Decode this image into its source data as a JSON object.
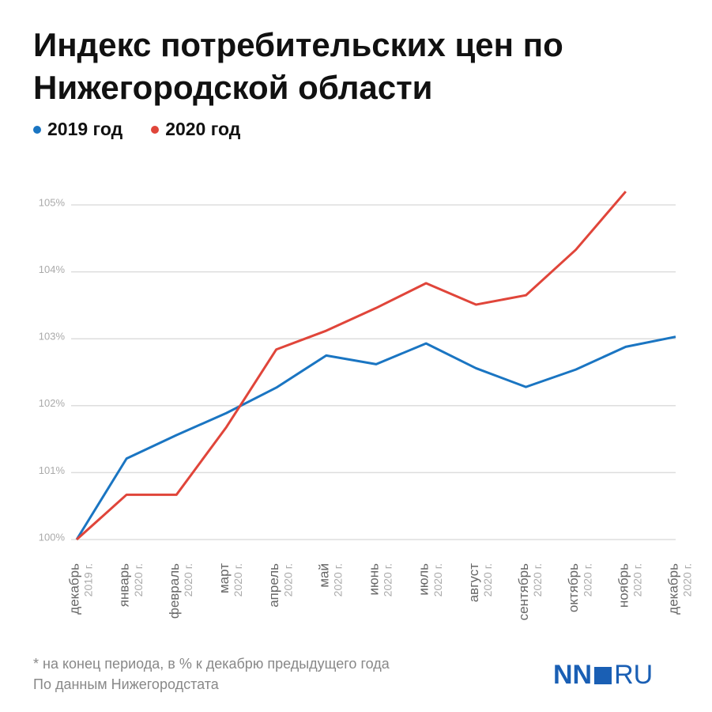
{
  "chart_data": {
    "type": "line",
    "title": "Индекс потребительских цен по Нижегородской области",
    "categories": [
      "декабрь",
      "январь",
      "февраль",
      "март",
      "апрель",
      "май",
      "июнь",
      "июль",
      "август",
      "сентябрь",
      "октябрь",
      "ноябрь",
      "декабрь"
    ],
    "category_years": [
      "2019 г.",
      "2020 г.",
      "2020 г.",
      "2020 г.",
      "2020 г.",
      "2020 г.",
      "2020 г.",
      "2020 г.",
      "2020 г.",
      "2020 г.",
      "2020 г.",
      "2020 г.",
      "2020 г."
    ],
    "series": [
      {
        "name": "2019 год",
        "color": "#1a75c2",
        "values": [
          100,
          101.21,
          101.56,
          101.89,
          102.27,
          102.75,
          102.62,
          102.93,
          102.56,
          102.28,
          102.54,
          102.88,
          103.03
        ]
      },
      {
        "name": "2020 год",
        "color": "#e0453a",
        "values": [
          100,
          100.67,
          100.67,
          101.68,
          102.84,
          103.12,
          103.46,
          103.83,
          103.51,
          103.65,
          104.33,
          105.2,
          null
        ]
      }
    ],
    "ylim": [
      100,
      105.3
    ],
    "yticks": [
      {
        "value": 100,
        "label": "100%"
      },
      {
        "value": 101,
        "label": "101%"
      },
      {
        "value": 102,
        "label": "102%"
      },
      {
        "value": 103,
        "label": "103%"
      },
      {
        "value": 104,
        "label": "104%"
      },
      {
        "value": 105,
        "label": "105%"
      }
    ],
    "grid": true,
    "footnote": "* на конец периода, в % к декабрю предыдущего года",
    "source": "По данным Нижегородстата",
    "logo": [
      "NN",
      "RU"
    ]
  }
}
